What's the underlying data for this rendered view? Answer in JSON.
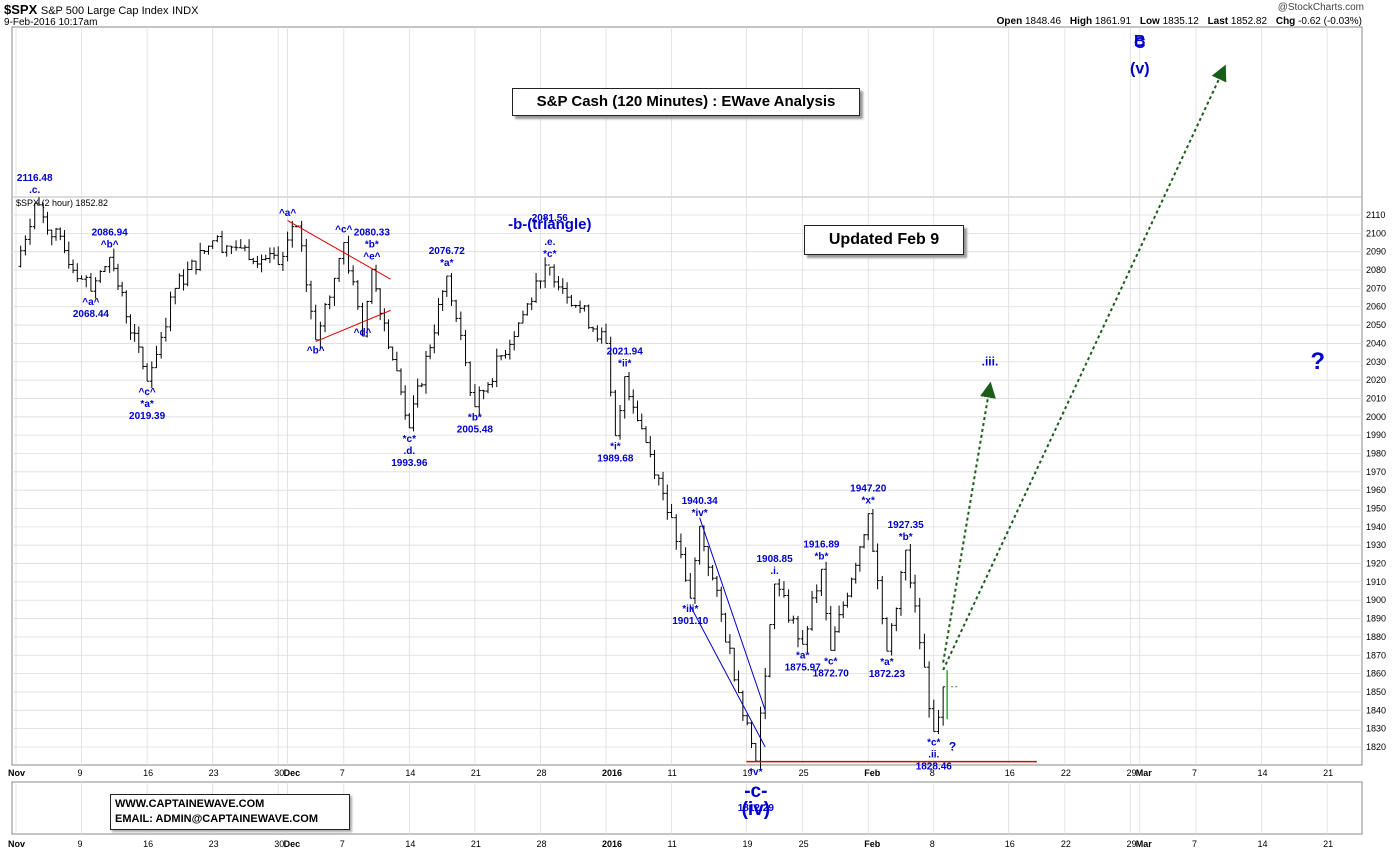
{
  "header": {
    "ticker": "$SPX",
    "name": "S&P 500 Large Cap Index",
    "exchange": "INDX",
    "datetime": "9-Feb-2016 10:17am",
    "brand": "@StockCharts.com",
    "open_label": "Open",
    "open": "1848.46",
    "high_label": "High",
    "high": "1861.91",
    "low_label": "Low",
    "low": "1835.12",
    "last_label": "Last",
    "last": "1852.82",
    "chg_label": "Chg",
    "chg": "-0.62 (-0.03%)"
  },
  "title_box": "S&P Cash (120 Minutes) : EWave Analysis",
  "updated_box": "Updated Feb 9",
  "contact": {
    "website": "WWW.CAPTAINEWAVE.COM",
    "email": "EMAIL: ADMIN@CAPTAINEWAVE.COM"
  },
  "chart_data": {
    "type": "ohlc",
    "series_label": "$SPX (2 hour) 1852.82",
    "ylim": [
      1810,
      2118
    ],
    "y_ticks": [
      1820,
      1830,
      1840,
      1850,
      1860,
      1870,
      1880,
      1890,
      1900,
      1910,
      1920,
      1930,
      1940,
      1950,
      1960,
      1970,
      1980,
      1990,
      2000,
      2010,
      2020,
      2030,
      2040,
      2050,
      2060,
      2070,
      2080,
      2090,
      2100,
      2110
    ],
    "x_ticks": [
      {
        "label": "Nov",
        "date": "2015-11-02"
      },
      {
        "label": "9",
        "date": "2015-11-09"
      },
      {
        "label": "16",
        "date": "2015-11-16"
      },
      {
        "label": "23",
        "date": "2015-11-23"
      },
      {
        "label": "30",
        "date": "2015-11-30"
      },
      {
        "label": "Dec",
        "date": "2015-12-01"
      },
      {
        "label": "7",
        "date": "2015-12-07"
      },
      {
        "label": "14",
        "date": "2015-12-14"
      },
      {
        "label": "21",
        "date": "2015-12-21"
      },
      {
        "label": "28",
        "date": "2015-12-28"
      },
      {
        "label": "2016",
        "date": "2016-01-04"
      },
      {
        "label": "11",
        "date": "2016-01-11"
      },
      {
        "label": "19",
        "date": "2016-01-19"
      },
      {
        "label": "25",
        "date": "2016-01-25"
      },
      {
        "label": "Feb",
        "date": "2016-02-01"
      },
      {
        "label": "8",
        "date": "2016-02-08"
      },
      {
        "label": "16",
        "date": "2016-02-16"
      },
      {
        "label": "22",
        "date": "2016-02-22"
      },
      {
        "label": "29",
        "date": "2016-02-29"
      },
      {
        "label": "Mar",
        "date": "2016-03-01"
      },
      {
        "label": "7",
        "date": "2016-03-07"
      },
      {
        "label": "14",
        "date": "2016-03-14"
      },
      {
        "label": "21",
        "date": "2016-03-21"
      }
    ],
    "pivots": [
      [
        "2015-11-02",
        2082
      ],
      [
        "2015-11-04",
        2116.48
      ],
      [
        "2015-11-09",
        2075
      ],
      [
        "2015-11-10",
        2068.44
      ],
      [
        "2015-11-12",
        2086.94
      ],
      [
        "2015-11-16",
        2019.39
      ],
      [
        "2015-11-19",
        2070
      ],
      [
        "2015-11-23",
        2096
      ],
      [
        "2015-11-26",
        2092
      ],
      [
        "2015-11-30",
        2083
      ],
      [
        "2015-12-02",
        2104
      ],
      [
        "2015-12-04",
        2042
      ],
      [
        "2015-12-07",
        2095
      ],
      [
        "2015-12-09",
        2044
      ],
      [
        "2015-12-10",
        2080.33
      ],
      [
        "2015-12-14",
        1993.96
      ],
      [
        "2015-12-18",
        2076.72
      ],
      [
        "2015-12-21",
        2005.48
      ],
      [
        "2015-12-28",
        2074
      ],
      [
        "2015-12-29",
        2081.56
      ],
      [
        "2016-01-04",
        2040
      ],
      [
        "2016-01-05",
        1989.68
      ],
      [
        "2016-01-06",
        2021.94
      ],
      [
        "2016-01-11",
        1945
      ],
      [
        "2016-01-13",
        1901.1
      ],
      [
        "2016-01-14",
        1940.34
      ],
      [
        "2016-01-20",
        1812.29
      ],
      [
        "2016-01-22",
        1908.85
      ],
      [
        "2016-01-25",
        1875.97
      ],
      [
        "2016-01-27",
        1916.89
      ],
      [
        "2016-01-28",
        1872.7
      ],
      [
        "2016-02-01",
        1947.2
      ],
      [
        "2016-02-03",
        1872.23
      ],
      [
        "2016-02-05",
        1927.35
      ],
      [
        "2016-02-08",
        1828.46
      ],
      [
        "2016-02-09",
        1852.82
      ]
    ],
    "wave_labels": [
      {
        "date": "2015-11-04",
        "value": 2116.48,
        "pos": "above",
        "lines": [
          "2116.48",
          ".c."
        ]
      },
      {
        "date": "2015-11-10",
        "value": 2068.44,
        "pos": "below",
        "lines": [
          "^a^",
          "2068.44"
        ]
      },
      {
        "date": "2015-11-12",
        "value": 2086.94,
        "pos": "above",
        "lines": [
          "2086.94",
          "^b^"
        ]
      },
      {
        "date": "2015-11-16",
        "value": 2019.39,
        "pos": "below",
        "lines": [
          "^c^",
          "*a*",
          "2019.39"
        ]
      },
      {
        "date": "2015-12-01",
        "value": 2104,
        "pos": "above",
        "lines": [
          "^a^"
        ]
      },
      {
        "date": "2015-12-04",
        "value": 2042,
        "pos": "below",
        "lines": [
          "^b^"
        ]
      },
      {
        "date": "2015-12-07",
        "value": 2095,
        "pos": "above",
        "lines": [
          "^c^"
        ]
      },
      {
        "date": "2015-12-09",
        "value": 2052,
        "pos": "below",
        "lines": [
          "^d^"
        ]
      },
      {
        "date": "2015-12-10",
        "value": 2080.33,
        "pos": "above",
        "lines": [
          "2080.33",
          "*b*",
          "^e^"
        ]
      },
      {
        "date": "2015-12-14",
        "value": 1993.96,
        "pos": "below",
        "lines": [
          "*c*",
          ".d.",
          "1993.96"
        ]
      },
      {
        "date": "2015-12-18",
        "value": 2076.72,
        "pos": "above",
        "lines": [
          "2076.72",
          "*a*"
        ]
      },
      {
        "date": "2015-12-21",
        "value": 2005.48,
        "pos": "below",
        "lines": [
          "*b*",
          "2005.48"
        ]
      },
      {
        "date": "2015-12-29",
        "value": 2081.56,
        "pos": "above",
        "lines": [
          "2081.56",
          "-b-(triangle)",
          ".e.",
          "*c*"
        ]
      },
      {
        "date": "2016-01-05",
        "value": 1989.68,
        "pos": "below",
        "lines": [
          "*i*",
          "1989.68"
        ]
      },
      {
        "date": "2016-01-06",
        "value": 2021.94,
        "pos": "above",
        "lines": [
          "2021.94",
          "*ii*"
        ]
      },
      {
        "date": "2016-01-13",
        "value": 1901.1,
        "pos": "below",
        "lines": [
          "*iii*",
          "1901.10"
        ]
      },
      {
        "date": "2016-01-14",
        "value": 1940.34,
        "pos": "above",
        "lines": [
          "1940.34",
          "*iv*"
        ]
      },
      {
        "date": "2016-01-20",
        "value": 1812.29,
        "pos": "below",
        "lines": [
          "*v*",
          "-c-",
          "(iv)",
          "1812.29"
        ]
      },
      {
        "date": "2016-01-22",
        "value": 1908.85,
        "pos": "above",
        "lines": [
          "1908.85",
          ".i."
        ]
      },
      {
        "date": "2016-01-25",
        "value": 1875.97,
        "pos": "below",
        "lines": [
          "*a*",
          "1875.97"
        ]
      },
      {
        "date": "2016-01-27",
        "value": 1916.89,
        "pos": "above",
        "lines": [
          "1916.89",
          "*b*"
        ]
      },
      {
        "date": "2016-01-28",
        "value": 1872.7,
        "pos": "below",
        "lines": [
          "*c*",
          "1872.70"
        ]
      },
      {
        "date": "2016-02-01",
        "value": 1947.2,
        "pos": "above",
        "lines": [
          "1947.20",
          "*x*"
        ]
      },
      {
        "date": "2016-02-03",
        "value": 1872.23,
        "pos": "below",
        "lines": [
          "*a*",
          "1872.23"
        ]
      },
      {
        "date": "2016-02-05",
        "value": 1927.35,
        "pos": "above",
        "lines": [
          "1927.35",
          "*b*"
        ]
      },
      {
        "date": "2016-02-08",
        "value": 1828.46,
        "pos": "below",
        "lines": [
          "*c*",
          ".ii.",
          "1828.46"
        ]
      }
    ],
    "projection_labels": [
      {
        "text": ".iii.",
        "date": "2016-02-14",
        "value": 2028
      },
      {
        "text": "?",
        "date": "2016-03-20",
        "value": 2026
      },
      {
        "text": "?",
        "date": "2016-02-10",
        "value": 1818
      },
      {
        "text": "B",
        "date": "2016-03-01",
        "value": 2214
      },
      {
        "text": "C",
        "date": "2016-03-01",
        "value": 2201
      },
      {
        "text": "(v)",
        "date": "2016-03-01",
        "value": 2187
      }
    ],
    "colors": {
      "bars": "#000000",
      "labels": "#0000cc",
      "trendline": "#dd0000",
      "channel": "#0000cc",
      "projection": "#1a5c1a",
      "support": "#dd0000",
      "grid": "#dcdcdc"
    }
  }
}
